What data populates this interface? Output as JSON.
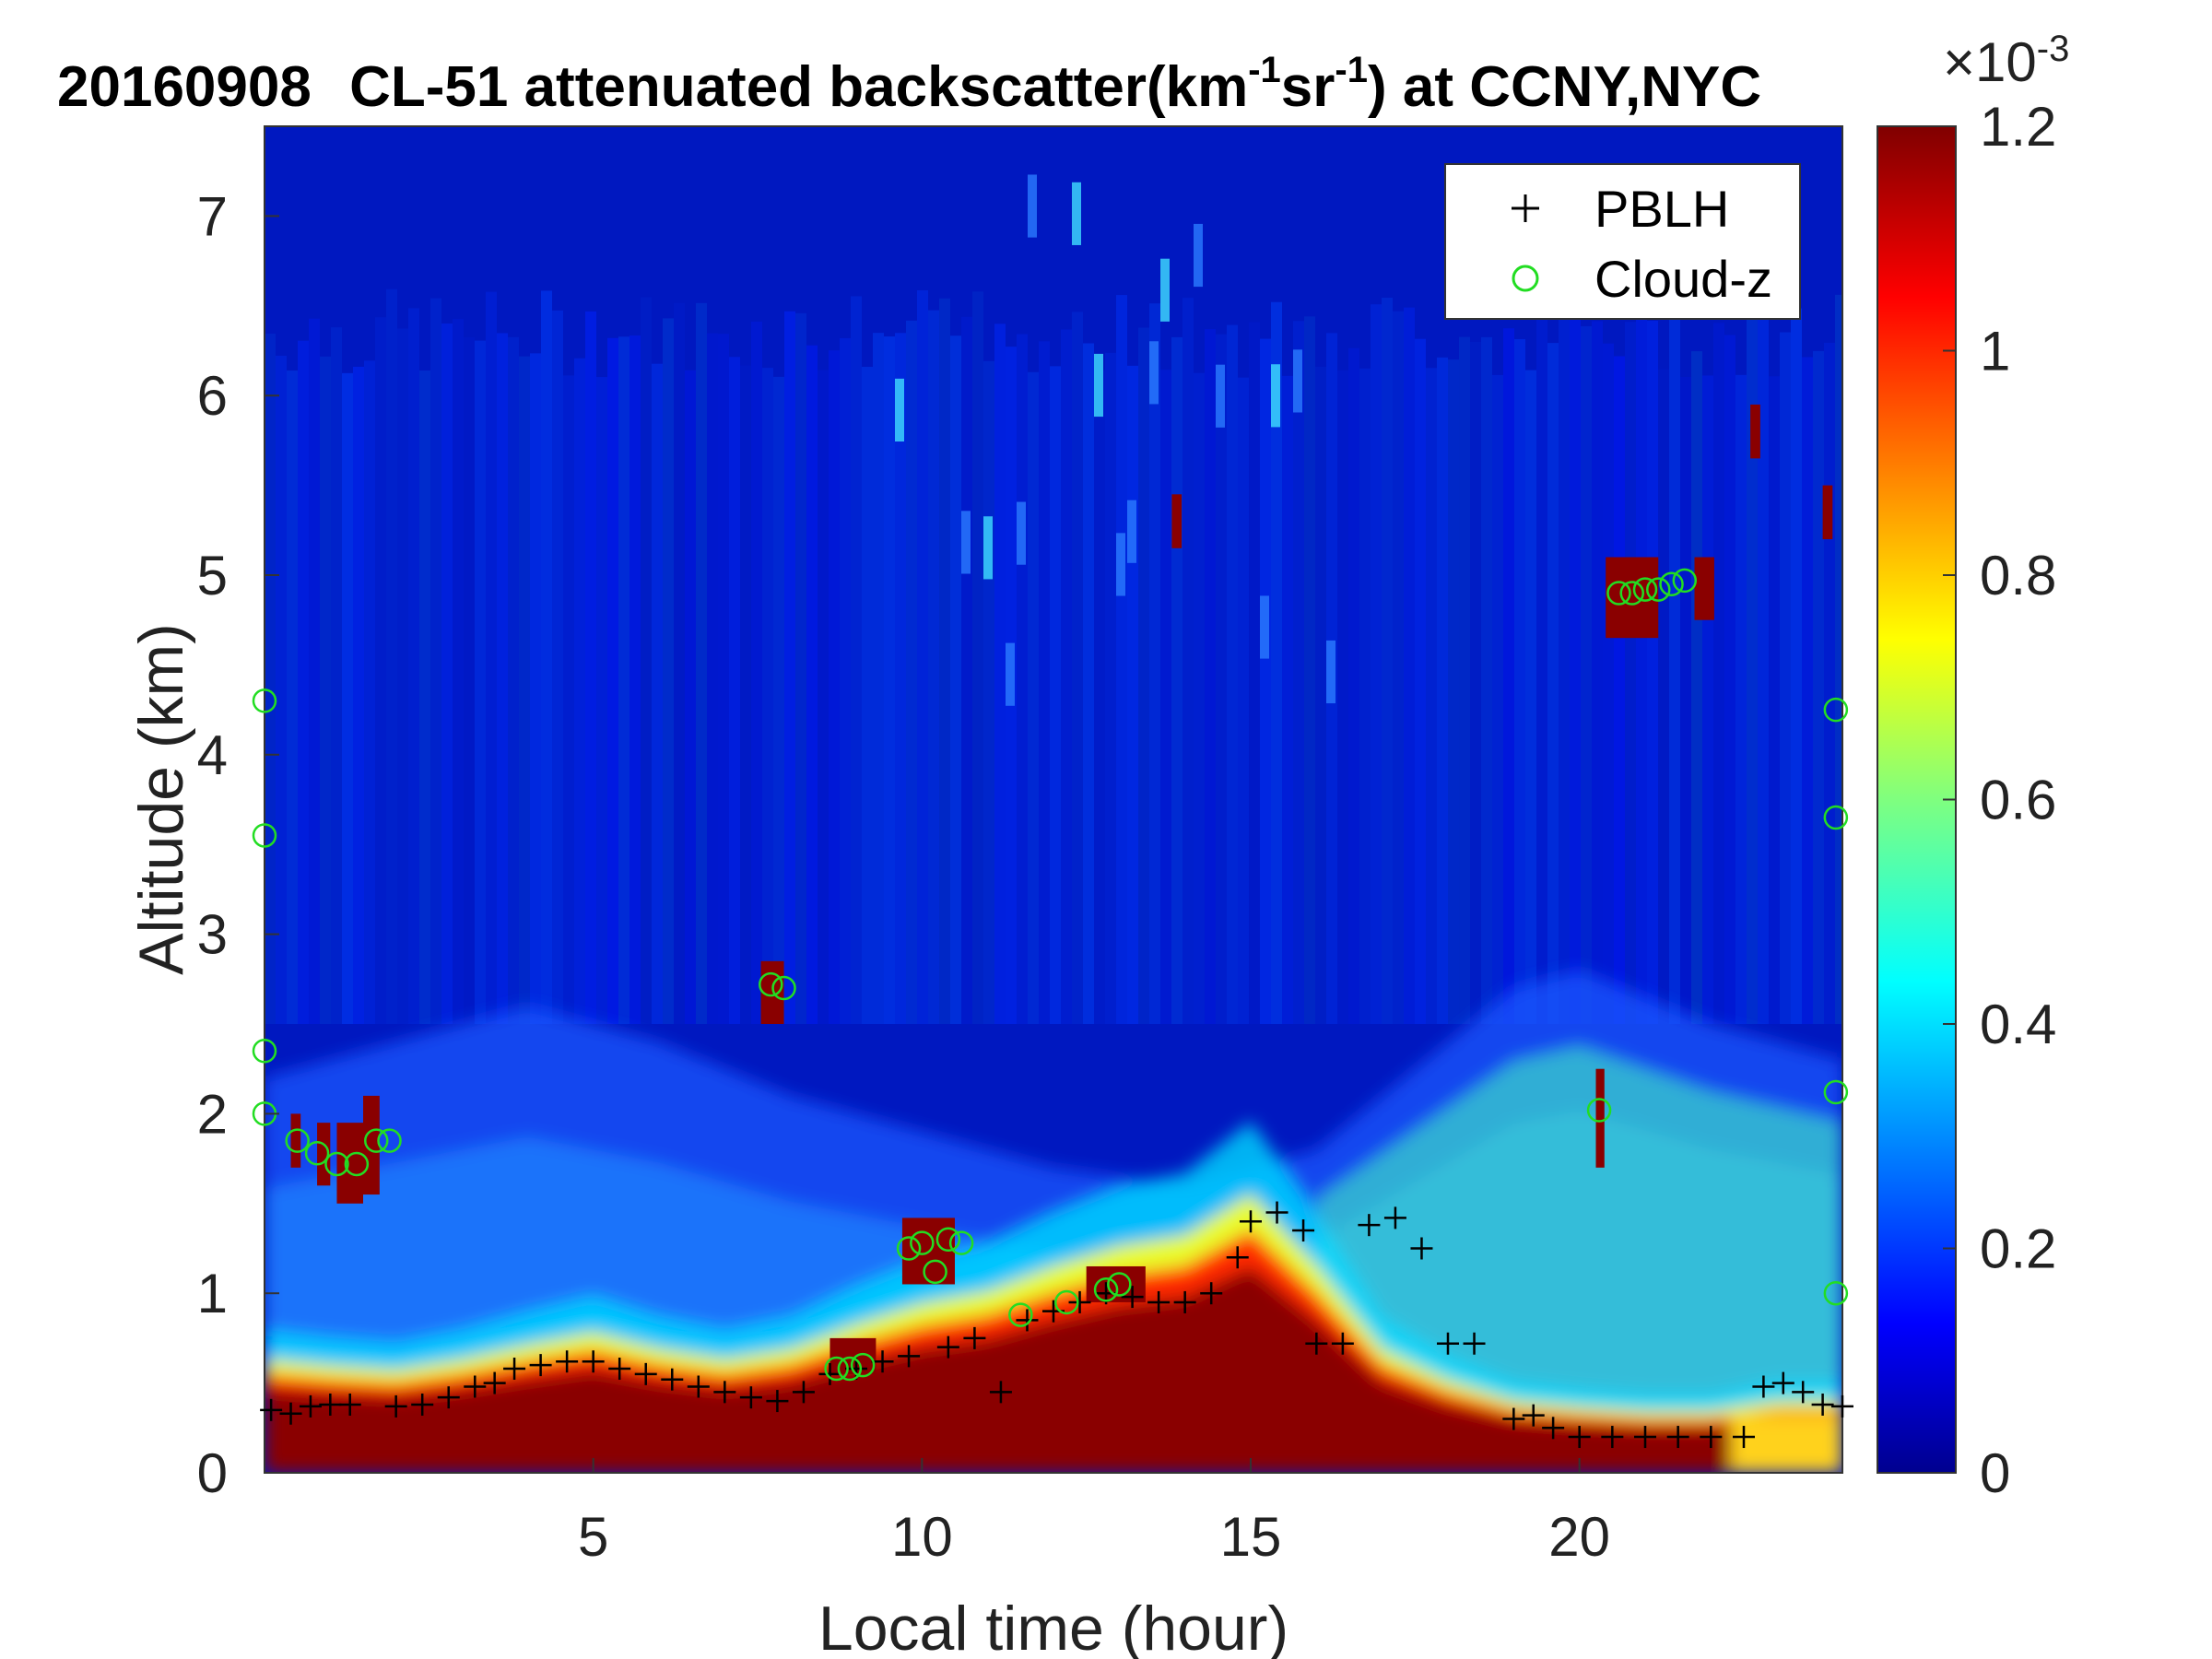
{
  "chart_data": {
    "type": "heatmap",
    "title": {
      "date": "20160908",
      "prefix": "CL-51 attenuated backscatter(km",
      "sup1": "-1",
      "middle": "sr",
      "sup2": "-1",
      "suffix": ") at CCNY,NYC"
    },
    "xlabel": "Local time (hour)",
    "ylabel": "Altitude (km)",
    "xlim": [
      0,
      24
    ],
    "ylim": [
      0,
      7.5
    ],
    "xticks": [
      "5",
      "10",
      "15",
      "20"
    ],
    "yticks": [
      "0",
      "1",
      "2",
      "3",
      "4",
      "5",
      "6",
      "7"
    ],
    "colorbar": {
      "colormap": "jet",
      "range": [
        0,
        1.2
      ],
      "ticks": [
        "0",
        "0.2",
        "0.4",
        "0.6",
        "0.8",
        "1",
        "1.2"
      ],
      "exponent_base": "×10",
      "exponent_power": "-3"
    },
    "legend": {
      "position": "top-right",
      "entries": [
        {
          "label": "PBLH",
          "marker": "+",
          "color": "#000000"
        },
        {
          "label": "Cloud-z",
          "marker": "o",
          "color": "#22dd22"
        }
      ]
    },
    "aerosol_layer_top_km": [
      [
        0,
        0.55
      ],
      [
        1,
        0.52
      ],
      [
        2,
        0.5
      ],
      [
        3,
        0.55
      ],
      [
        4,
        0.62
      ],
      [
        5,
        0.68
      ],
      [
        6,
        0.6
      ],
      [
        7,
        0.55
      ],
      [
        8,
        0.6
      ],
      [
        9,
        0.72
      ],
      [
        10,
        0.82
      ],
      [
        11,
        0.88
      ],
      [
        12,
        1.0
      ],
      [
        13,
        1.1
      ],
      [
        14,
        1.15
      ],
      [
        15,
        1.35
      ],
      [
        16,
        1.0
      ],
      [
        17,
        0.6
      ],
      [
        18,
        0.45
      ],
      [
        19,
        0.35
      ],
      [
        20,
        0.32
      ],
      [
        21,
        0.3
      ],
      [
        22,
        0.3
      ],
      [
        23,
        0.35
      ],
      [
        24,
        0.35
      ]
    ],
    "diffuse_layer_top_km": [
      [
        0,
        2.2
      ],
      [
        2,
        2.4
      ],
      [
        4,
        2.6
      ],
      [
        6,
        2.4
      ],
      [
        8,
        2.1
      ],
      [
        10,
        1.9
      ],
      [
        12,
        1.7
      ],
      [
        14,
        1.6
      ],
      [
        16,
        1.8
      ],
      [
        18,
        2.4
      ],
      [
        19,
        2.7
      ],
      [
        20,
        2.8
      ],
      [
        22,
        2.5
      ],
      [
        24,
        2.3
      ]
    ],
    "pblh_km": [
      [
        0.1,
        0.35
      ],
      [
        0.4,
        0.33
      ],
      [
        0.7,
        0.37
      ],
      [
        1.0,
        0.38
      ],
      [
        1.3,
        0.38
      ],
      [
        2.0,
        0.37
      ],
      [
        2.4,
        0.38
      ],
      [
        2.8,
        0.42
      ],
      [
        3.2,
        0.48
      ],
      [
        3.5,
        0.5
      ],
      [
        3.8,
        0.58
      ],
      [
        4.2,
        0.6
      ],
      [
        4.6,
        0.62
      ],
      [
        5.0,
        0.62
      ],
      [
        5.4,
        0.58
      ],
      [
        5.8,
        0.55
      ],
      [
        6.2,
        0.52
      ],
      [
        6.6,
        0.48
      ],
      [
        7.0,
        0.45
      ],
      [
        7.4,
        0.42
      ],
      [
        7.8,
        0.4
      ],
      [
        8.2,
        0.45
      ],
      [
        8.6,
        0.55
      ],
      [
        9.0,
        0.58
      ],
      [
        9.4,
        0.62
      ],
      [
        9.8,
        0.65
      ],
      [
        10.4,
        0.7
      ],
      [
        10.8,
        0.75
      ],
      [
        11.2,
        0.45
      ],
      [
        11.6,
        0.85
      ],
      [
        12.0,
        0.9
      ],
      [
        12.4,
        0.95
      ],
      [
        12.8,
        1.0
      ],
      [
        13.2,
        0.98
      ],
      [
        13.6,
        0.95
      ],
      [
        14.0,
        0.95
      ],
      [
        14.4,
        1.0
      ],
      [
        14.8,
        1.2
      ],
      [
        15.0,
        1.4
      ],
      [
        15.4,
        1.45
      ],
      [
        15.8,
        1.35
      ],
      [
        16.0,
        0.72
      ],
      [
        16.4,
        0.72
      ],
      [
        16.8,
        1.38
      ],
      [
        17.2,
        1.42
      ],
      [
        17.6,
        1.25
      ],
      [
        18.0,
        0.72
      ],
      [
        18.4,
        0.72
      ],
      [
        19.0,
        0.3
      ],
      [
        19.3,
        0.32
      ],
      [
        19.6,
        0.25
      ],
      [
        20.0,
        0.2
      ],
      [
        20.5,
        0.2
      ],
      [
        21.0,
        0.2
      ],
      [
        21.5,
        0.2
      ],
      [
        22.0,
        0.2
      ],
      [
        22.5,
        0.2
      ],
      [
        22.8,
        0.48
      ],
      [
        23.1,
        0.5
      ],
      [
        23.4,
        0.45
      ],
      [
        23.7,
        0.38
      ],
      [
        24.0,
        0.37
      ]
    ],
    "cloud_z_km": [
      [
        0.5,
        1.85
      ],
      [
        0.8,
        1.78
      ],
      [
        1.1,
        1.72
      ],
      [
        1.4,
        1.72
      ],
      [
        1.7,
        1.85
      ],
      [
        1.9,
        1.85
      ],
      [
        7.7,
        2.72
      ],
      [
        7.9,
        2.7
      ],
      [
        8.7,
        0.58
      ],
      [
        8.9,
        0.58
      ],
      [
        9.1,
        0.6
      ],
      [
        9.8,
        1.25
      ],
      [
        10.0,
        1.28
      ],
      [
        10.2,
        1.12
      ],
      [
        10.4,
        1.3
      ],
      [
        10.6,
        1.28
      ],
      [
        11.5,
        0.88
      ],
      [
        12.2,
        0.95
      ],
      [
        12.8,
        1.02
      ],
      [
        13.0,
        1.05
      ],
      [
        20.3,
        2.02
      ],
      [
        20.6,
        4.9
      ],
      [
        20.8,
        4.9
      ],
      [
        21.0,
        4.92
      ],
      [
        21.2,
        4.92
      ],
      [
        21.4,
        4.95
      ],
      [
        21.6,
        4.97
      ],
      [
        23.9,
        2.12
      ],
      [
        23.9,
        1.0
      ],
      [
        23.9,
        3.65
      ],
      [
        23.9,
        4.25
      ],
      [
        0.0,
        2.35
      ],
      [
        0.0,
        2.0
      ],
      [
        0.0,
        3.55
      ],
      [
        0.0,
        4.3
      ]
    ],
    "cloud_patches_km": [
      {
        "t0": 0.4,
        "t1": 0.55,
        "z0": 1.7,
        "z1": 2.0
      },
      {
        "t0": 0.8,
        "t1": 1.0,
        "z0": 1.6,
        "z1": 1.95
      },
      {
        "t0": 1.1,
        "t1": 1.5,
        "z0": 1.5,
        "z1": 1.95
      },
      {
        "t0": 1.5,
        "t1": 1.75,
        "z0": 1.55,
        "z1": 2.1
      },
      {
        "t0": 7.55,
        "t1": 7.9,
        "z0": 2.5,
        "z1": 2.85
      },
      {
        "t0": 8.6,
        "t1": 9.3,
        "z0": 0.55,
        "z1": 0.75
      },
      {
        "t0": 9.7,
        "t1": 10.5,
        "z0": 1.05,
        "z1": 1.42
      },
      {
        "t0": 12.5,
        "t1": 13.4,
        "z0": 0.95,
        "z1": 1.15
      },
      {
        "t0": 13.8,
        "t1": 13.95,
        "z0": 5.15,
        "z1": 5.45
      },
      {
        "t0": 20.25,
        "t1": 20.38,
        "z0": 1.7,
        "z1": 2.25
      },
      {
        "t0": 20.4,
        "t1": 21.2,
        "z0": 4.65,
        "z1": 5.1
      },
      {
        "t0": 21.75,
        "t1": 22.05,
        "z0": 4.75,
        "z1": 5.1
      },
      {
        "t0": 22.6,
        "t1": 22.75,
        "z0": 5.65,
        "z1": 5.95
      },
      {
        "t0": 23.7,
        "t1": 23.85,
        "z0": 5.2,
        "z1": 5.5
      }
    ]
  }
}
